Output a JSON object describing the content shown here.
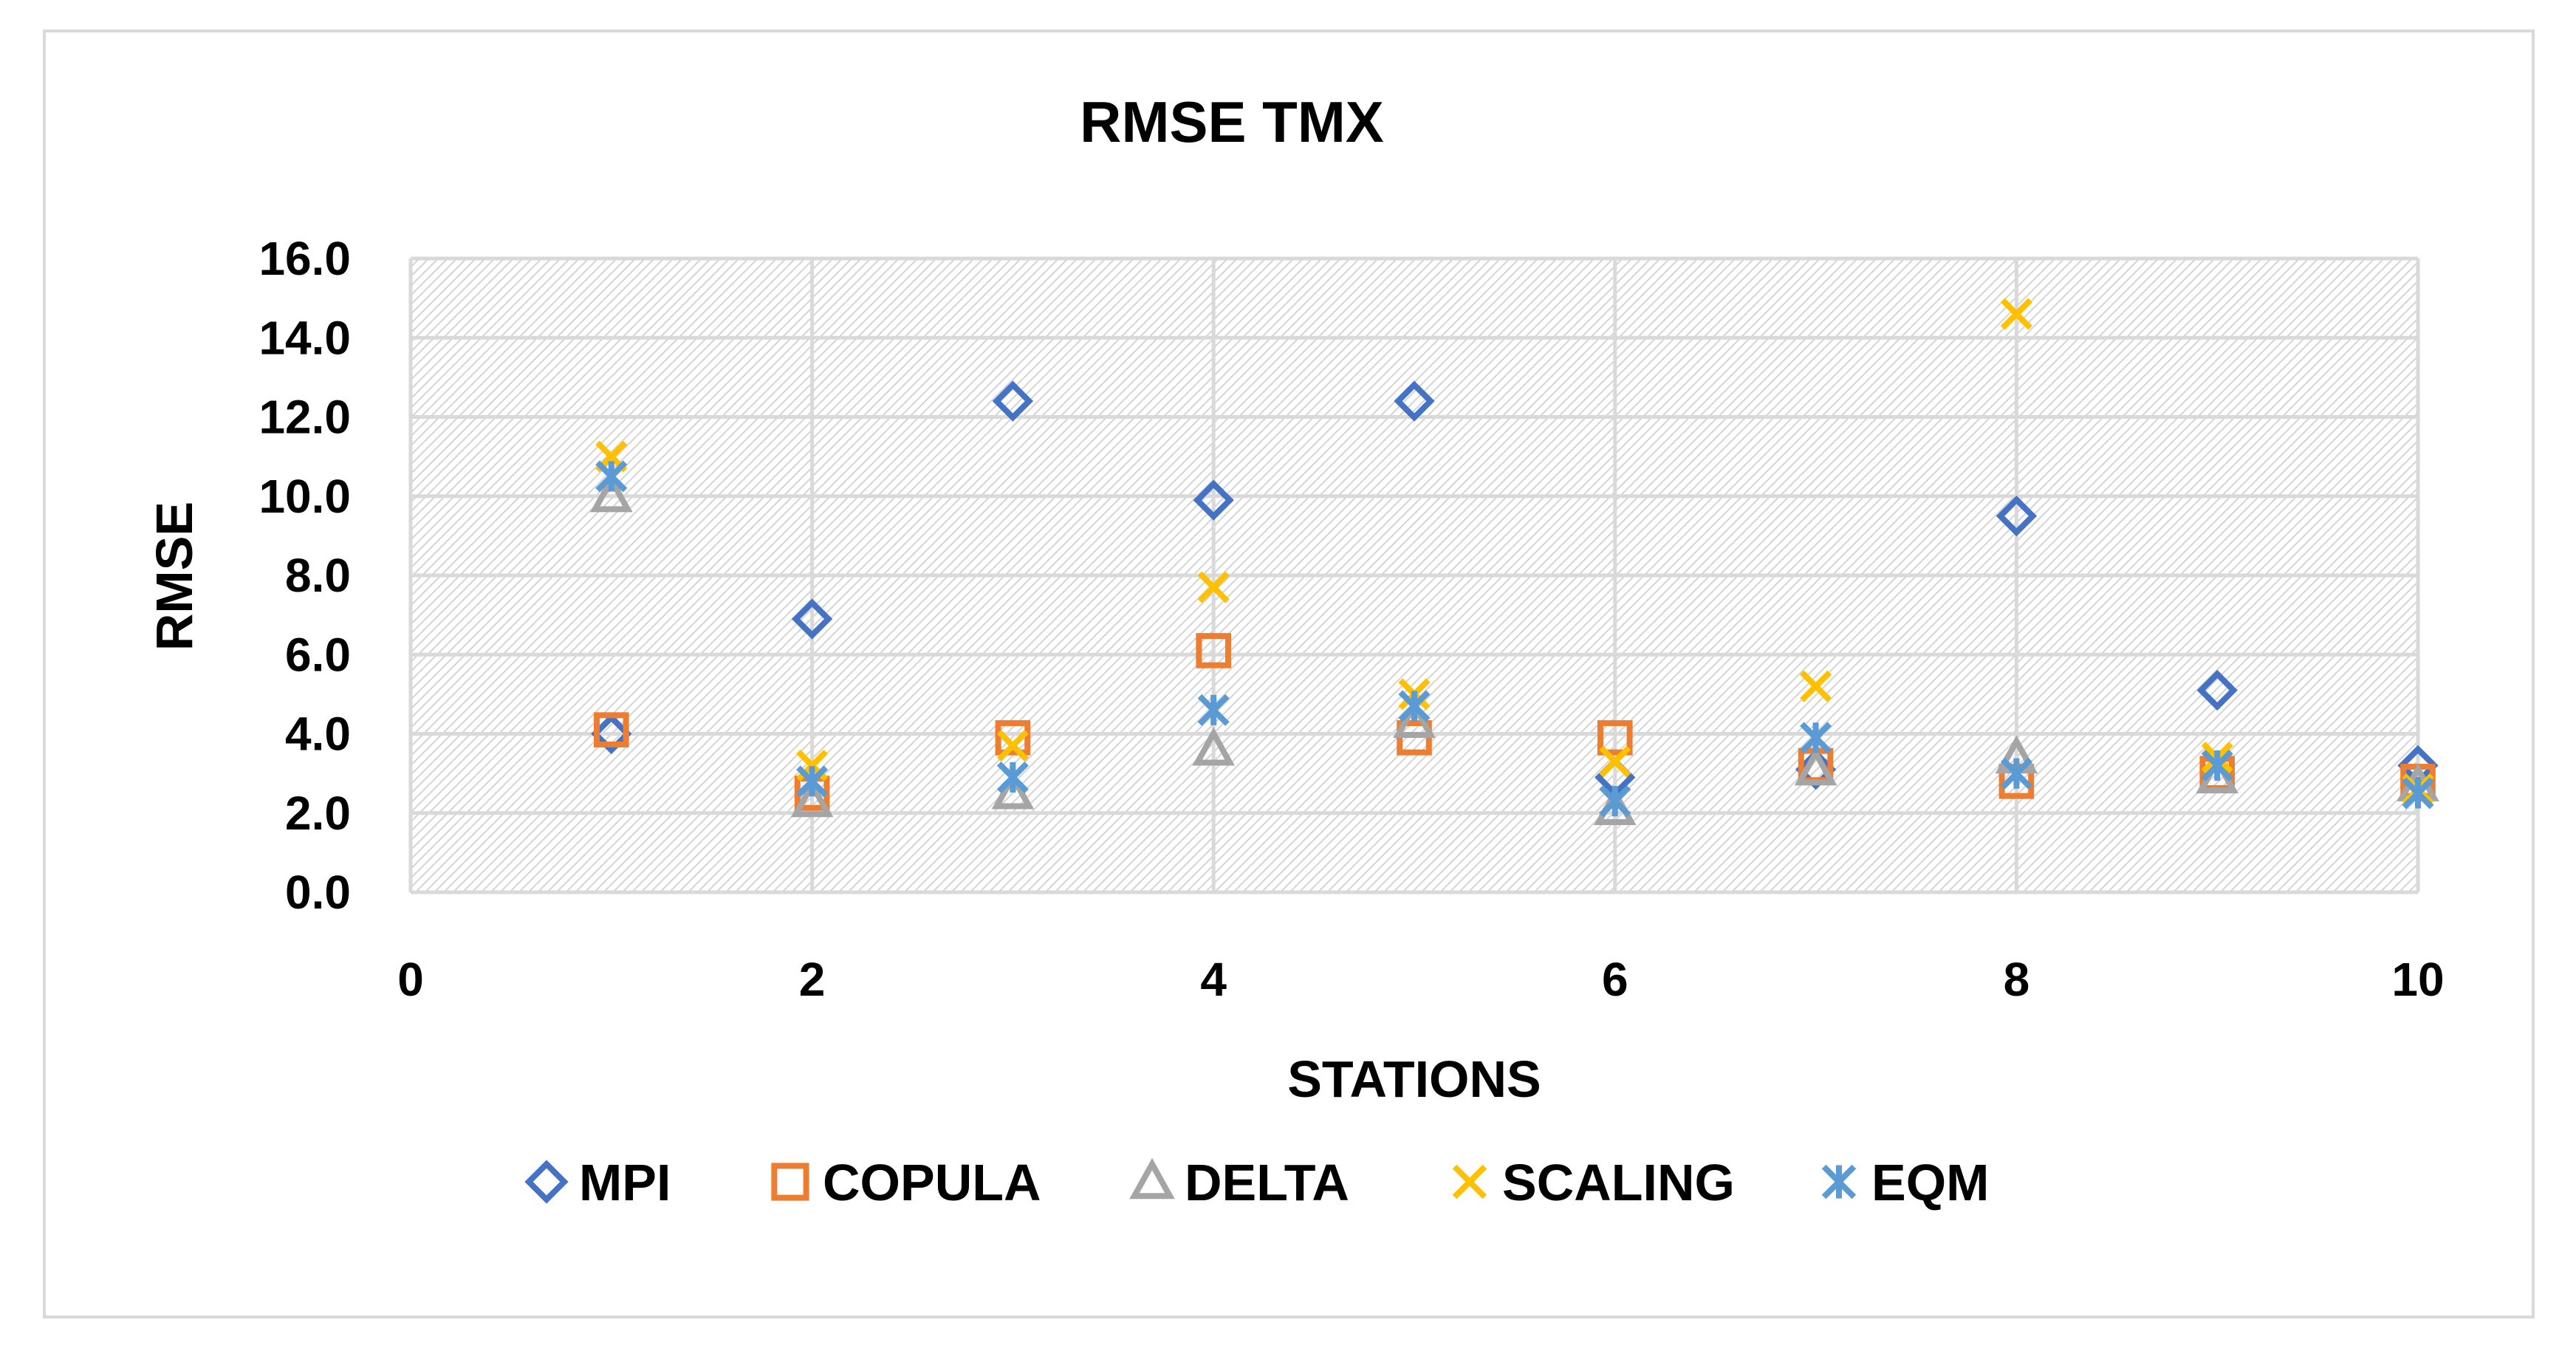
{
  "chart_data": {
    "type": "scatter",
    "title": "RMSE TMX",
    "xlabel": "STATIONS",
    "ylabel": "RMSE",
    "xlim": [
      0,
      10
    ],
    "ylim": [
      0,
      16
    ],
    "xticks": [
      "0",
      "2",
      "4",
      "6",
      "8",
      "10"
    ],
    "yticks": [
      "0.0",
      "2.0",
      "4.0",
      "6.0",
      "8.0",
      "10.0",
      "12.0",
      "14.0",
      "16.0"
    ],
    "grid": true,
    "legend_position": "bottom",
    "series": [
      {
        "name": "MPI",
        "marker": "diamond",
        "color": "#4472C4",
        "x": [
          1,
          2,
          3,
          4,
          5,
          6,
          7,
          8,
          9,
          10
        ],
        "y": [
          4.0,
          6.9,
          12.4,
          9.9,
          12.4,
          2.9,
          3.1,
          9.5,
          5.1,
          3.2
        ]
      },
      {
        "name": "COPULA",
        "marker": "square",
        "color": "#ED7D31",
        "x": [
          1,
          2,
          3,
          4,
          5,
          6,
          7,
          8,
          9,
          10
        ],
        "y": [
          4.1,
          2.5,
          3.9,
          6.1,
          3.9,
          3.9,
          3.2,
          2.8,
          3.0,
          2.8
        ]
      },
      {
        "name": "DELTA",
        "marker": "triangle",
        "color": "#A5A5A5",
        "x": [
          1,
          2,
          3,
          4,
          5,
          6,
          7,
          8,
          9,
          10
        ],
        "y": [
          10.0,
          2.3,
          2.5,
          3.6,
          4.3,
          2.1,
          3.1,
          3.4,
          2.9,
          2.7
        ]
      },
      {
        "name": "SCALING",
        "marker": "x",
        "color": "#FFC000",
        "x": [
          1,
          2,
          3,
          4,
          5,
          6,
          7,
          8,
          9,
          10
        ],
        "y": [
          11.0,
          3.2,
          3.7,
          7.7,
          5.0,
          3.3,
          5.2,
          14.6,
          3.4,
          2.6
        ]
      },
      {
        "name": "EQM",
        "marker": "star",
        "color": "#5B9BD5",
        "x": [
          1,
          2,
          3,
          4,
          5,
          6,
          7,
          8,
          9,
          10
        ],
        "y": [
          10.5,
          2.8,
          2.9,
          4.6,
          4.7,
          2.3,
          3.9,
          3.0,
          3.2,
          2.5
        ]
      }
    ]
  }
}
